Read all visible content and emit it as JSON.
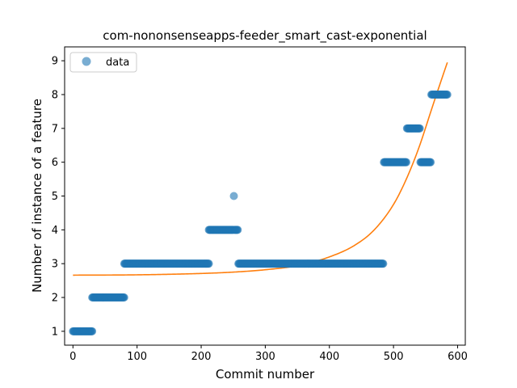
{
  "chart_data": {
    "type": "scatter",
    "title": "com-nononsenseapps-feeder_smart_cast-exponential",
    "xlabel": "Commit number",
    "ylabel": "Number of instance of a feature",
    "xlim": [
      -13,
      612
    ],
    "ylim": [
      0.59,
      9.41
    ],
    "xticks": [
      0,
      100,
      200,
      300,
      400,
      500,
      600
    ],
    "yticks": [
      1,
      2,
      3,
      4,
      5,
      6,
      7,
      8,
      9
    ],
    "grid": false,
    "legend": {
      "placement": "top-left",
      "entries": [
        "data"
      ]
    },
    "colors": {
      "data": "#1f77b4",
      "fit": "#ff7f0e"
    },
    "series": [
      {
        "name": "data",
        "kind": "scatter",
        "runs": [
          {
            "x_start": 0,
            "x_end": 30,
            "y": 1
          },
          {
            "x_start": 30,
            "x_end": 80,
            "y": 2
          },
          {
            "x_start": 80,
            "x_end": 212,
            "y": 3
          },
          {
            "x_start": 212,
            "x_end": 250,
            "y": 4
          },
          {
            "x_start": 251,
            "x_end": 251,
            "y": 5
          },
          {
            "x_start": 252,
            "x_end": 257,
            "y": 4
          },
          {
            "x_start": 258,
            "x_end": 484,
            "y": 3
          },
          {
            "x_start": 485,
            "x_end": 520,
            "y": 6
          },
          {
            "x_start": 521,
            "x_end": 541,
            "y": 7
          },
          {
            "x_start": 542,
            "x_end": 558,
            "y": 6
          },
          {
            "x_start": 559,
            "x_end": 584,
            "y": 8
          }
        ]
      },
      {
        "kind": "line",
        "x": [
          0,
          100,
          200,
          250,
          300,
          350,
          400,
          440,
          470,
          500,
          520,
          540,
          560,
          575,
          584
        ],
        "y": [
          2.66,
          2.67,
          2.71,
          2.75,
          2.82,
          2.94,
          3.2,
          3.55,
          4.0,
          4.75,
          5.5,
          6.45,
          7.6,
          8.45,
          8.95
        ]
      }
    ]
  }
}
